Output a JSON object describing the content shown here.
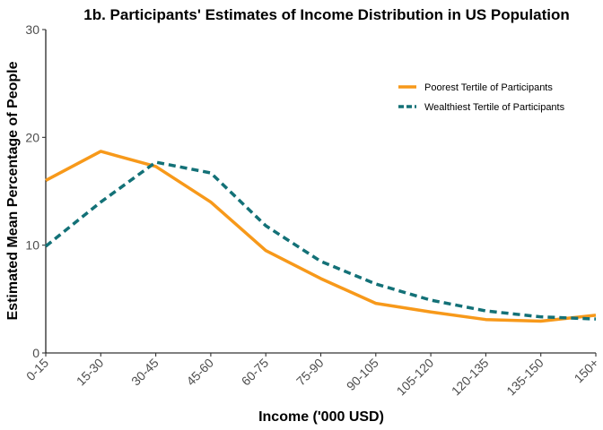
{
  "chart_data": {
    "type": "line",
    "title": "1b. Participants' Estimates of Income Distribution in US Population",
    "xlabel": "Income ('000 USD)",
    "ylabel": "Estimated Mean Percentage of People",
    "categories": [
      "0-15",
      "15-30",
      "30-45",
      "45-60",
      "60-75",
      "75-90",
      "90-105",
      "105-120",
      "120-135",
      "135-150",
      "150+"
    ],
    "ylim": [
      0,
      30
    ],
    "yticks": [
      0,
      10,
      20,
      30
    ],
    "grid": false,
    "legend_position": "top-right",
    "series": [
      {
        "name": "Poorest Tertile of Participants",
        "color": "#F7991A",
        "style": "solid",
        "values": [
          16.0,
          18.7,
          17.3,
          14.0,
          9.5,
          6.9,
          4.6,
          3.8,
          3.1,
          2.95,
          3.5
        ]
      },
      {
        "name": "Wealthiest Tertile of Participants",
        "color": "#137177",
        "style": "dashed",
        "values": [
          9.9,
          14.0,
          17.7,
          16.7,
          11.8,
          8.5,
          6.4,
          4.9,
          3.9,
          3.35,
          3.15
        ]
      }
    ]
  }
}
